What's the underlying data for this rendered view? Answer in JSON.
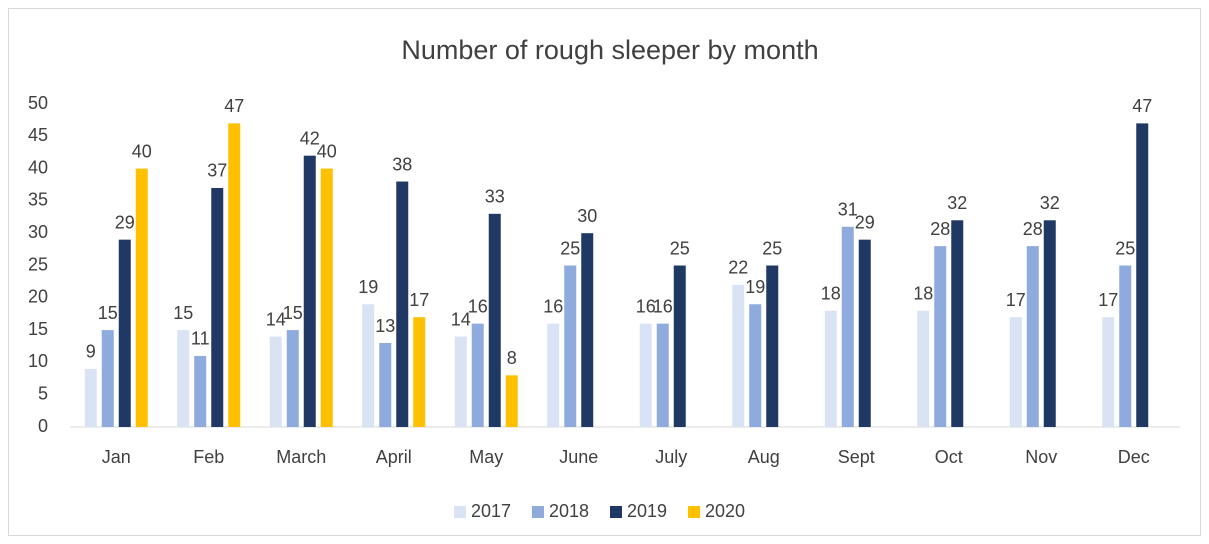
{
  "chart_data": {
    "type": "bar",
    "title": "Number of rough sleeper by month",
    "categories": [
      "Jan",
      "Feb",
      "March",
      "April",
      "May",
      "June",
      "July",
      "Aug",
      "Sept",
      "Oct",
      "Nov",
      "Dec"
    ],
    "series": [
      {
        "name": "2017",
        "color": "#dae3f3",
        "values": [
          9,
          15,
          14,
          19,
          14,
          16,
          16,
          22,
          18,
          18,
          17,
          17
        ]
      },
      {
        "name": "2018",
        "color": "#8faadc",
        "values": [
          15,
          11,
          15,
          13,
          16,
          25,
          16,
          19,
          31,
          28,
          28,
          25
        ]
      },
      {
        "name": "2019",
        "color": "#203864",
        "values": [
          29,
          37,
          42,
          38,
          33,
          30,
          25,
          25,
          29,
          32,
          32,
          47
        ]
      },
      {
        "name": "2020",
        "color": "#ffc000",
        "values": [
          40,
          47,
          40,
          17,
          8,
          null,
          null,
          null,
          null,
          null,
          null,
          null
        ]
      }
    ],
    "ylim": [
      0,
      50
    ],
    "yticks": [
      0,
      5,
      10,
      15,
      20,
      25,
      30,
      35,
      40,
      45,
      50
    ],
    "grid": false,
    "legend": "bottom"
  }
}
